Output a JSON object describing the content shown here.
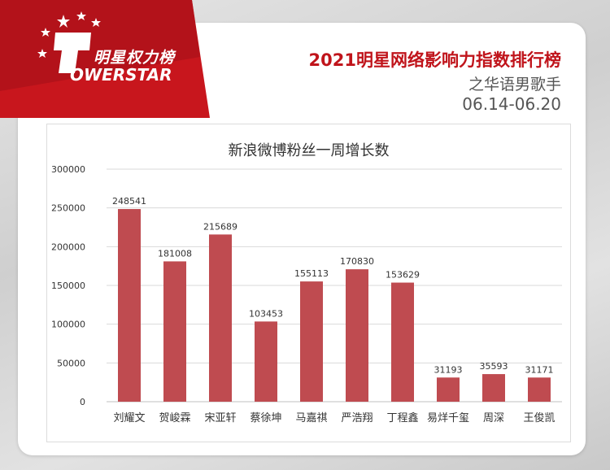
{
  "brand": {
    "logo_cn": "明星权力榜",
    "logo_en": "OWERSTAR"
  },
  "header": {
    "title": "2021明星网络影响力指数排行榜",
    "subtitle": "之华语男歌手",
    "date_range": "06.14-06.20"
  },
  "colors": {
    "bar": "#bf4b50",
    "brand_red": "#c0141b",
    "grid": "#d9d9d9"
  },
  "chart_data": {
    "type": "bar",
    "title": "新浪微博粉丝一周增长数",
    "categories": [
      "刘耀文",
      "贺峻霖",
      "宋亚轩",
      "蔡徐坤",
      "马嘉祺",
      "严浩翔",
      "丁程鑫",
      "易烊千玺",
      "周深",
      "王俊凯"
    ],
    "values": [
      248541,
      181008,
      215689,
      103453,
      155113,
      170830,
      153629,
      31193,
      35593,
      31171
    ],
    "y_ticks": [
      "0",
      "50000",
      "100000",
      "150000",
      "200000",
      "250000",
      "300000"
    ],
    "ylim": [
      0,
      300000
    ],
    "grid": true
  }
}
